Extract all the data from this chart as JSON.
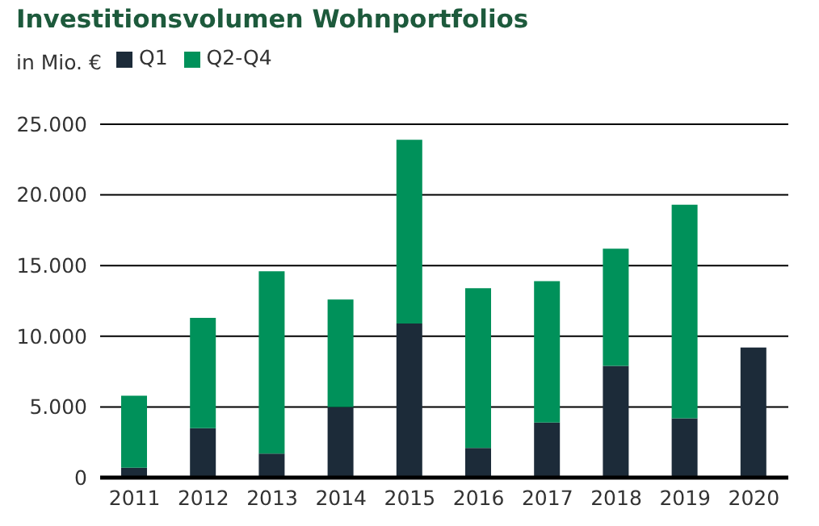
{
  "chart_data": {
    "type": "bar",
    "title": "Investitionsvolumen Wohnportfolios",
    "ylabel": "in Mio. €",
    "categories": [
      "2011",
      "2012",
      "2013",
      "2014",
      "2015",
      "2016",
      "2017",
      "2018",
      "2019",
      "2020"
    ],
    "stacked": true,
    "series": [
      {
        "name": "Q1",
        "color": "#1c2b39",
        "values": [
          700,
          3500,
          1700,
          5000,
          10900,
          2100,
          3900,
          7900,
          4200,
          9200
        ]
      },
      {
        "name": "Q2-Q4",
        "color": "#00915a",
        "values": [
          5100,
          7800,
          12900,
          7600,
          13000,
          11300,
          10000,
          8300,
          15100,
          null
        ]
      }
    ],
    "ylim": [
      0,
      25000
    ],
    "yticks": [
      0,
      {
        "value": 5000,
        "label": "5.000"
      },
      {
        "value": 10000,
        "label": "10.000"
      },
      {
        "value": 15000,
        "label": "15.000"
      },
      {
        "value": 20000,
        "label": "20.000"
      },
      {
        "value": 25000,
        "label": "25.000"
      }
    ],
    "grid": "y",
    "legend": "top left"
  }
}
